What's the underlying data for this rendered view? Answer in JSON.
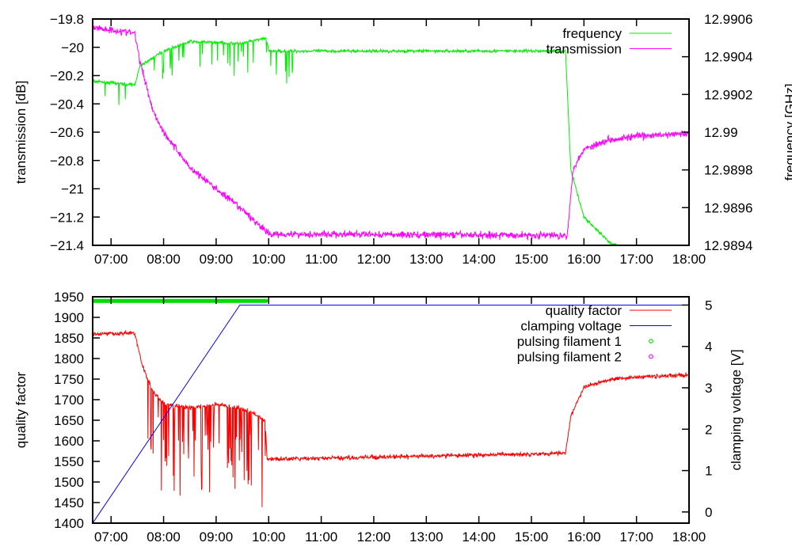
{
  "chart_data": [
    {
      "type": "line",
      "xlabel": "",
      "xlim": [
        6.65,
        18
      ],
      "x_ticks": [
        7,
        8,
        9,
        10,
        11,
        12,
        13,
        14,
        15,
        16,
        17,
        18
      ],
      "x_tick_labels": [
        "07:00",
        "08:00",
        "09:00",
        "10:00",
        "11:00",
        "12:00",
        "13:00",
        "14:00",
        "15:00",
        "16:00",
        "17:00",
        "18:00"
      ],
      "ylabel": "transmission [dB]",
      "ylim": [
        -21.4,
        -19.8
      ],
      "y_ticks": [
        -19.8,
        -20,
        -20.2,
        -20.4,
        -20.6,
        -20.8,
        -21,
        -21.2,
        -21.4
      ],
      "y_tick_labels": [
        "-19.8",
        "-20",
        "-20.2",
        "-20.4",
        "-20.6",
        "-20.8",
        "-21",
        "-21.2",
        "-21.4"
      ],
      "y2label": "frequency [GHz]",
      "y2lim": [
        12.9894,
        12.9906
      ],
      "y2_ticks": [
        12.9894,
        12.9896,
        12.9898,
        12.99,
        12.9902,
        12.9904,
        12.9906
      ],
      "y2_tick_labels": [
        "12.9894",
        "12.9896",
        "12.9898",
        "12.99",
        "12.9902",
        "12.9904",
        "12.9906"
      ],
      "legend_position": "top-right",
      "series": [
        {
          "name": "frequency",
          "axis": "y2",
          "color": "#00ee00",
          "points": [
            [
              6.65,
              12.99027
            ],
            [
              7.45,
              12.99025
            ],
            [
              7.55,
              12.99035
            ],
            [
              8.0,
              12.99043
            ],
            [
              8.5,
              12.99048
            ],
            [
              9.5,
              12.99047
            ],
            [
              9.95,
              12.9905
            ],
            [
              10.0,
              12.99043
            ],
            [
              15.65,
              12.99043
            ],
            [
              15.75,
              12.9898
            ],
            [
              16.0,
              12.98955
            ],
            [
              16.5,
              12.98941
            ],
            [
              17.0,
              12.98937
            ],
            [
              18.0,
              12.98936
            ]
          ],
          "noise": 8e-06,
          "spikes": {
            "range": [
              6.65,
              10.7
            ],
            "count": 40,
            "depth": 0.00018,
            "direction": "down"
          }
        },
        {
          "name": "transmission",
          "axis": "y",
          "color": "#ff00ff",
          "points": [
            [
              6.65,
              -19.86
            ],
            [
              7.45,
              -19.9
            ],
            [
              7.55,
              -20.1
            ],
            [
              7.8,
              -20.45
            ],
            [
              8.0,
              -20.6
            ],
            [
              8.5,
              -20.85
            ],
            [
              9.0,
              -21.0
            ],
            [
              9.5,
              -21.15
            ],
            [
              9.8,
              -21.25
            ],
            [
              10.0,
              -21.32
            ],
            [
              15.68,
              -21.33
            ],
            [
              15.8,
              -20.85
            ],
            [
              16.0,
              -20.72
            ],
            [
              16.5,
              -20.65
            ],
            [
              17.0,
              -20.63
            ],
            [
              18.0,
              -20.61
            ]
          ],
          "noise": 0.025
        }
      ]
    },
    {
      "type": "line",
      "xlabel": "",
      "xlim": [
        6.65,
        18
      ],
      "x_ticks": [
        7,
        8,
        9,
        10,
        11,
        12,
        13,
        14,
        15,
        16,
        17,
        18
      ],
      "x_tick_labels": [
        "07:00",
        "08:00",
        "09:00",
        "10:00",
        "11:00",
        "12:00",
        "13:00",
        "14:00",
        "15:00",
        "16:00",
        "17:00",
        "18:00"
      ],
      "ylabel": "quality factor",
      "ylim": [
        1400,
        1950
      ],
      "y_ticks": [
        1400,
        1450,
        1500,
        1550,
        1600,
        1650,
        1700,
        1750,
        1800,
        1850,
        1900,
        1950
      ],
      "y_tick_labels": [
        "1400",
        "1450",
        "1500",
        "1550",
        "1600",
        "1650",
        "1700",
        "1750",
        "1800",
        "1850",
        "1900",
        "1950"
      ],
      "y2label": "clamping voltage [V]",
      "y2lim": [
        -0.27,
        5.2
      ],
      "y2_ticks": [
        0,
        1,
        2,
        3,
        4,
        5
      ],
      "y2_tick_labels": [
        "0",
        "1",
        "2",
        "3",
        "4",
        "5"
      ],
      "legend_position": "top-right",
      "series": [
        {
          "name": "quality factor",
          "axis": "y",
          "color": "#ff0000",
          "points": [
            [
              6.65,
              1860
            ],
            [
              7.45,
              1862
            ],
            [
              7.6,
              1780
            ],
            [
              7.8,
              1720
            ],
            [
              8.0,
              1690
            ],
            [
              8.5,
              1680
            ],
            [
              9.0,
              1688
            ],
            [
              9.5,
              1680
            ],
            [
              9.8,
              1660
            ],
            [
              9.93,
              1650
            ],
            [
              9.97,
              1555
            ],
            [
              12.0,
              1560
            ],
            [
              15.65,
              1570
            ],
            [
              15.75,
              1660
            ],
            [
              16.0,
              1730
            ],
            [
              16.5,
              1750
            ],
            [
              17.0,
              1755
            ],
            [
              18.0,
              1760
            ]
          ],
          "noise": 5,
          "spikes": {
            "range": [
              7.7,
              9.95
            ],
            "count": 70,
            "depth": 220,
            "direction": "down"
          }
        },
        {
          "name": "clamping voltage",
          "axis": "y2",
          "color": "#0000ff",
          "points": [
            [
              6.65,
              -0.27
            ],
            [
              9.45,
              5.0
            ],
            [
              18.0,
              5.0
            ]
          ],
          "noise": 0
        },
        {
          "name": "pulsing filament 1",
          "axis": "y",
          "color": "#00dd00",
          "style": "points",
          "points_range": [
            6.65,
            9.95
          ],
          "value": 1940
        },
        {
          "name": "pulsing filament 2",
          "axis": "y",
          "color": "#ff00ff",
          "style": "points",
          "points_range": null,
          "value": null
        }
      ]
    }
  ]
}
